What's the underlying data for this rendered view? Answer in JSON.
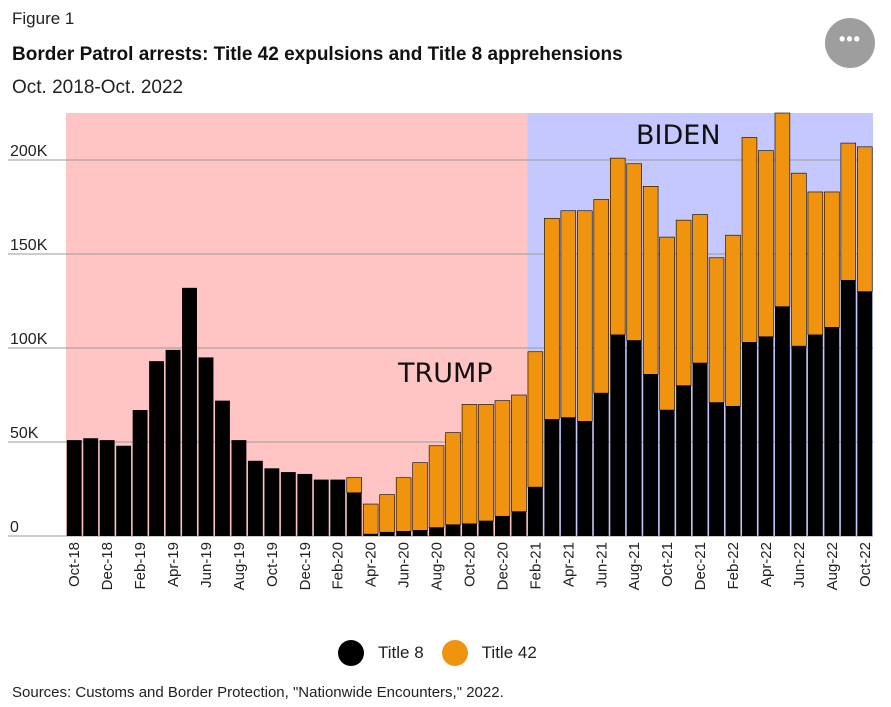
{
  "figure_label": "Figure 1",
  "title": "Border Patrol arrests: Title 42 expulsions and Title 8 apprehensions",
  "subtitle": "Oct. 2018-Oct. 2022",
  "more_button": {
    "icon": "more-icon",
    "label": "•••"
  },
  "legend": {
    "title8_label": "Title 8",
    "title42_label": "Title 42",
    "title8_color": "#000000",
    "title42_color": "#f0930f"
  },
  "source": "Sources: Customs and Border Protection, \"Nationwide Encounters,\" 2022.",
  "chart_data": {
    "type": "bar",
    "stacked": true,
    "title": "Border Patrol arrests: Title 42 expulsions and Title 8 apprehensions",
    "xlabel": "",
    "ylabel": "",
    "ylim": [
      0,
      225000
    ],
    "yticks": [
      0,
      50000,
      100000,
      150000,
      200000
    ],
    "ytick_labels": [
      "0",
      "50K",
      "100K",
      "150K",
      "200K"
    ],
    "categories": [
      "Oct-18",
      "Nov-18",
      "Dec-18",
      "Jan-19",
      "Feb-19",
      "Mar-19",
      "Apr-19",
      "May-19",
      "Jun-19",
      "Jul-19",
      "Aug-19",
      "Sep-19",
      "Oct-19",
      "Nov-19",
      "Dec-19",
      "Jan-20",
      "Feb-20",
      "Mar-20",
      "Apr-20",
      "May-20",
      "Jun-20",
      "Jul-20",
      "Aug-20",
      "Sep-20",
      "Oct-20",
      "Nov-20",
      "Dec-20",
      "Jan-21",
      "Feb-21",
      "Mar-21",
      "Apr-21",
      "May-21",
      "Jun-21",
      "Jul-21",
      "Aug-21",
      "Sep-21",
      "Oct-21",
      "Nov-21",
      "Dec-21",
      "Jan-22",
      "Feb-22",
      "Mar-22",
      "Apr-22",
      "May-22",
      "Jun-22",
      "Jul-22",
      "Aug-22",
      "Sep-22",
      "Oct-22"
    ],
    "tick_labels": [
      "Oct-18",
      "Dec-18",
      "Feb-19",
      "Apr-19",
      "Jun-19",
      "Aug-19",
      "Oct-19",
      "Dec-19",
      "Feb-20",
      "Apr-20",
      "Jun-20",
      "Aug-20",
      "Oct-20",
      "Dec-20",
      "Feb-21",
      "Apr-21",
      "Jun-21",
      "Aug-21",
      "Oct-21",
      "Dec-21",
      "Feb-22",
      "Apr-22",
      "Jun-22",
      "Aug-22",
      "Oct-22"
    ],
    "series": [
      {
        "name": "Title 8",
        "color": "#000000",
        "values": [
          51000,
          52000,
          51000,
          48000,
          67000,
          93000,
          99000,
          132000,
          95000,
          72000,
          51000,
          40000,
          36000,
          34000,
          33000,
          30000,
          30000,
          23000,
          1000,
          2000,
          2500,
          3000,
          4500,
          6000,
          6500,
          8000,
          10500,
          13000,
          26000,
          62000,
          63000,
          61000,
          76000,
          107000,
          104000,
          86000,
          67000,
          80000,
          92000,
          71000,
          69000,
          103000,
          106000,
          122000,
          101000,
          107000,
          111000,
          136000,
          130000
        ]
      },
      {
        "name": "Title 42",
        "color": "#f0930f",
        "values": [
          0,
          0,
          0,
          0,
          0,
          0,
          0,
          0,
          0,
          0,
          0,
          0,
          0,
          0,
          0,
          0,
          0,
          8000,
          16000,
          20000,
          28500,
          36000,
          43500,
          49000,
          63500,
          62000,
          61500,
          62000,
          72000,
          107000,
          110000,
          112000,
          103000,
          94000,
          94000,
          100000,
          92000,
          88000,
          79000,
          77000,
          91000,
          109000,
          99000,
          103000,
          92000,
          76000,
          72000,
          73000,
          77000
        ]
      }
    ],
    "eras": [
      {
        "name": "TRUMP",
        "start": "Oct-18",
        "end": "Jan-21",
        "color": "#ffc4c4"
      },
      {
        "name": "BIDEN",
        "start": "Feb-21",
        "end": "Oct-22",
        "color": "#c4c8ff"
      }
    ]
  }
}
